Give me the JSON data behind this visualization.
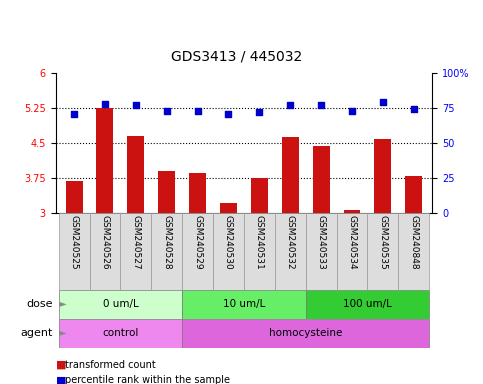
{
  "title": "GDS3413 / 445032",
  "samples": [
    "GSM240525",
    "GSM240526",
    "GSM240527",
    "GSM240528",
    "GSM240529",
    "GSM240530",
    "GSM240531",
    "GSM240532",
    "GSM240533",
    "GSM240534",
    "GSM240535",
    "GSM240848"
  ],
  "red_values": [
    3.68,
    5.26,
    4.65,
    3.9,
    3.85,
    3.22,
    3.75,
    4.63,
    4.44,
    3.07,
    4.58,
    3.8
  ],
  "blue_values": [
    71,
    78,
    77,
    73,
    73,
    71,
    72,
    77,
    77,
    73,
    79,
    74
  ],
  "ylim_left": [
    3.0,
    6.0
  ],
  "ylim_right": [
    0,
    100
  ],
  "yticks_left": [
    3.0,
    3.75,
    4.5,
    5.25,
    6.0
  ],
  "yticks_right": [
    0,
    25,
    50,
    75,
    100
  ],
  "ytick_labels_left": [
    "3",
    "3.75",
    "4.5",
    "5.25",
    "6"
  ],
  "ytick_labels_right": [
    "0",
    "25",
    "50",
    "75",
    "100%"
  ],
  "hlines": [
    3.75,
    4.5,
    5.25
  ],
  "bar_color": "#cc1111",
  "dot_color": "#0000cc",
  "dose_groups": [
    {
      "label": "0 um/L",
      "start": 0,
      "end": 4,
      "color": "#ccffcc"
    },
    {
      "label": "10 um/L",
      "start": 4,
      "end": 8,
      "color": "#66ee66"
    },
    {
      "label": "100 um/L",
      "start": 8,
      "end": 12,
      "color": "#33cc33"
    }
  ],
  "agent_groups": [
    {
      "label": "control",
      "start": 0,
      "end": 4,
      "color": "#ee88ee"
    },
    {
      "label": "homocysteine",
      "start": 4,
      "end": 12,
      "color": "#dd66dd"
    }
  ],
  "legend_items": [
    {
      "color": "#cc1111",
      "label": "transformed count"
    },
    {
      "color": "#0000cc",
      "label": "percentile rank within the sample"
    }
  ],
  "dose_label": "dose",
  "agent_label": "agent",
  "title_fontsize": 10,
  "tick_fontsize": 7,
  "sample_fontsize": 6.5
}
